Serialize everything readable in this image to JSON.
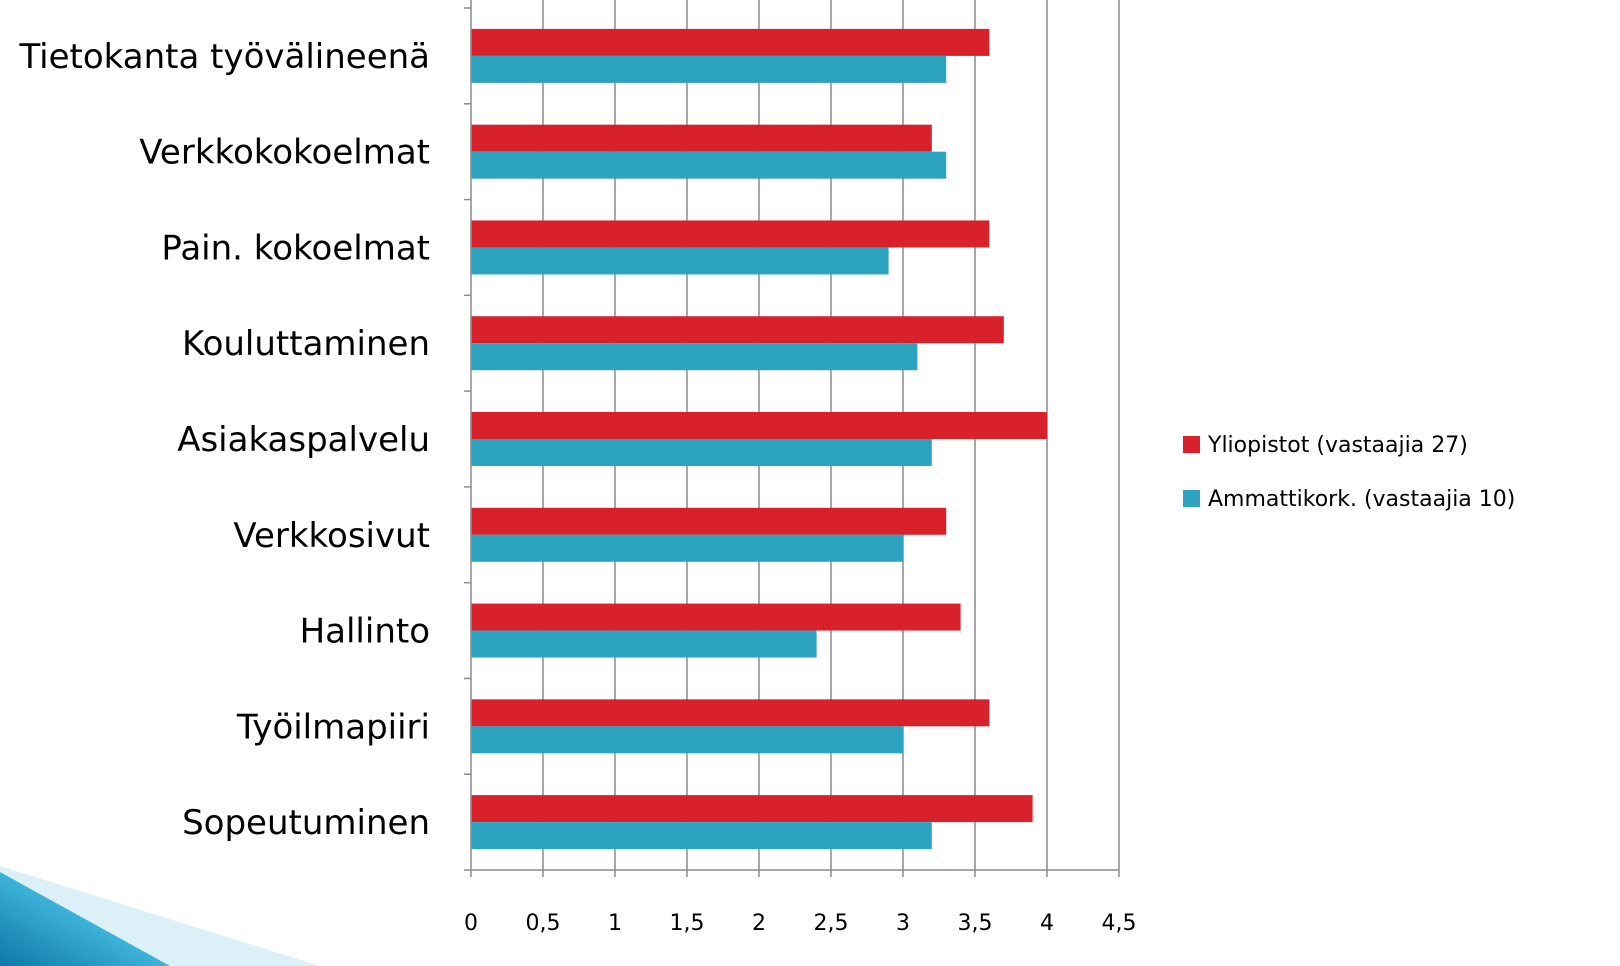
{
  "chart_data": {
    "type": "bar",
    "orientation": "horizontal",
    "categories": [
      "Tietokanta työvälineenä",
      "Verkkokokoelmat",
      "Pain. kokoelmat",
      "Kouluttaminen",
      "Asiakaspalvelu",
      "Verkkosivut",
      "Hallinto",
      "Työilmapiiri",
      "Sopeutuminen"
    ],
    "series": [
      {
        "name": "Yliopistot (vastaajia 27)",
        "color": "#d9212c",
        "values": [
          3.6,
          3.2,
          3.6,
          3.7,
          4.0,
          3.3,
          3.4,
          3.6,
          3.9
        ]
      },
      {
        "name": "Ammattikork. (vastaajia 10)",
        "color": "#2da4bf",
        "values": [
          3.3,
          3.3,
          2.9,
          3.1,
          3.2,
          3.0,
          2.4,
          3.0,
          3.2
        ]
      }
    ],
    "xlim": [
      0,
      4.5
    ],
    "xticks": [
      0,
      0.5,
      1,
      1.5,
      2,
      2.5,
      3,
      3.5,
      4,
      4.5
    ],
    "xtick_labels": [
      "0",
      "0,5",
      "1",
      "1,5",
      "2",
      "2,5",
      "3",
      "3,5",
      "4",
      "4,5"
    ],
    "grid": true,
    "legend_position": "right"
  },
  "decoration": {
    "corner_shape_color_dark": "#1d9cc4",
    "corner_shape_color_light": "#d4edf5"
  }
}
